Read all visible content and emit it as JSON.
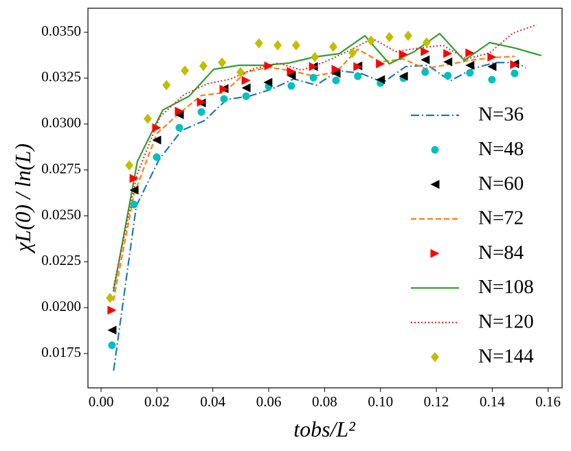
{
  "chart_data": {
    "type": "line",
    "x_label": "tobs/L²",
    "y_label": "χL(0) / ln(L)",
    "xlim": [
      -0.0047,
      0.165
    ],
    "ylim": [
      0.01563,
      0.03631
    ],
    "xticks": [
      {
        "value": 0.0,
        "label": "0.00"
      },
      {
        "value": 0.02,
        "label": "0.02"
      },
      {
        "value": 0.04,
        "label": "0.04"
      },
      {
        "value": 0.06,
        "label": "0.06"
      },
      {
        "value": 0.08,
        "label": "0.08"
      },
      {
        "value": 0.1,
        "label": "0.10"
      },
      {
        "value": 0.12,
        "label": "0.12"
      },
      {
        "value": 0.14,
        "label": "0.14"
      },
      {
        "value": 0.16,
        "label": "0.16"
      }
    ],
    "yticks": [
      {
        "value": 0.0175,
        "label": "0.0175"
      },
      {
        "value": 0.02,
        "label": "0.0200"
      },
      {
        "value": 0.0225,
        "label": "0.0225"
      },
      {
        "value": 0.025,
        "label": "0.0250"
      },
      {
        "value": 0.0275,
        "label": "0.0275"
      },
      {
        "value": 0.03,
        "label": "0.0300"
      },
      {
        "value": 0.0325,
        "label": "0.0325"
      },
      {
        "value": 0.035,
        "label": "0.0350"
      }
    ],
    "legend": "right",
    "series": [
      {
        "name": "N=36",
        "color": "#1f77b4",
        "line": "dashdot",
        "marker": null,
        "x": [
          0.0045,
          0.0126,
          0.0207,
          0.0288,
          0.0369,
          0.045,
          0.053,
          0.061,
          0.069,
          0.077,
          0.085,
          0.093,
          0.101,
          0.109,
          0.117,
          0.125,
          0.133,
          0.141,
          0.149,
          0.152
        ],
        "values": [
          0.01657,
          0.02554,
          0.02805,
          0.02965,
          0.03018,
          0.03134,
          0.03152,
          0.0319,
          0.03246,
          0.03212,
          0.03291,
          0.03276,
          0.03227,
          0.03313,
          0.0332,
          0.03235,
          0.03302,
          0.03335,
          0.03335,
          0.03306
        ]
      },
      {
        "name": "N=48",
        "color": "#00bfbf",
        "line": null,
        "marker": "circle",
        "x": [
          0.0039,
          0.0118,
          0.0199,
          0.028,
          0.0359,
          0.044,
          0.0519,
          0.06,
          0.0681,
          0.076,
          0.0841,
          0.0919,
          0.1,
          0.1082,
          0.116,
          0.1241,
          0.132,
          0.1399,
          0.148
        ],
        "values": [
          0.01795,
          0.02562,
          0.0282,
          0.0298,
          0.03066,
          0.03137,
          0.03152,
          0.03205,
          0.03208,
          0.03253,
          0.03238,
          0.03261,
          0.03223,
          0.0325,
          0.03283,
          0.03264,
          0.03279,
          0.03242,
          0.03276
        ]
      },
      {
        "name": "N=60",
        "color": "#000000",
        "line": null,
        "marker": "triangle-left",
        "x": [
          0.0039,
          0.0118,
          0.0199,
          0.028,
          0.0359,
          0.044,
          0.0519,
          0.0597,
          0.0681,
          0.076,
          0.0841,
          0.0919,
          0.1,
          0.1082,
          0.116,
          0.1241,
          0.132,
          0.1399,
          0.148
        ],
        "values": [
          0.01877,
          0.0264,
          0.02913,
          0.03051,
          0.03115,
          0.03193,
          0.03197,
          0.03227,
          0.03264,
          0.03313,
          0.03276,
          0.03317,
          0.03242,
          0.03261,
          0.0335,
          0.03339,
          0.0332,
          0.03313,
          0.03328
        ]
      },
      {
        "name": "N=72",
        "color": "#ff7f0e",
        "line": "dashed",
        "marker": null,
        "x": [
          0.0044,
          0.0118,
          0.0199,
          0.028,
          0.0359,
          0.044,
          0.0519,
          0.06,
          0.0681,
          0.076,
          0.0841,
          0.0919,
          0.1,
          0.1082,
          0.116,
          0.1241,
          0.132,
          0.1399,
          0.148
        ],
        "values": [
          0.02038,
          0.02618,
          0.02947,
          0.03059,
          0.03156,
          0.03171,
          0.03283,
          0.03309,
          0.03291,
          0.03261,
          0.03283,
          0.03407,
          0.03339,
          0.03354,
          0.03302,
          0.03324,
          0.03347,
          0.03362,
          0.03369
        ]
      },
      {
        "name": "N=84",
        "color": "#ff0000",
        "line": null,
        "marker": "triangle-right",
        "x": [
          0.0039,
          0.0118,
          0.0199,
          0.028,
          0.0359,
          0.044,
          0.0519,
          0.06,
          0.0681,
          0.076,
          0.0841,
          0.0919,
          0.1,
          0.1082,
          0.116,
          0.1241,
          0.132,
          0.1399,
          0.148
        ],
        "values": [
          0.01986,
          0.02704,
          0.0298,
          0.0307,
          0.03119,
          0.0319,
          0.03238,
          0.03317,
          0.03287,
          0.03313,
          0.03298,
          0.03313,
          0.03328,
          0.0338,
          0.03395,
          0.03384,
          0.03388,
          0.03365,
          0.03324
        ]
      },
      {
        "name": "N=108",
        "color": "#2ca02c",
        "line": "solid",
        "marker": null,
        "x": [
          0.0044,
          0.013,
          0.0221,
          0.0315,
          0.0403,
          0.0492,
          0.0583,
          0.0671,
          0.0762,
          0.0853,
          0.0944,
          0.1032,
          0.1121,
          0.1212,
          0.13,
          0.1391,
          0.1482,
          0.1576
        ],
        "values": [
          0.02087,
          0.02797,
          0.03077,
          0.03152,
          0.03298,
          0.0332,
          0.0332,
          0.03332,
          0.03365,
          0.03384,
          0.03481,
          0.03328,
          0.03395,
          0.03493,
          0.03347,
          0.03444,
          0.03414,
          0.03373
        ]
      },
      {
        "name": "N=120",
        "color": "#d62728",
        "line": "dotted",
        "marker": null,
        "x": [
          0.0044,
          0.0128,
          0.0211,
          0.0297,
          0.0381,
          0.0465,
          0.0548,
          0.0634,
          0.0718,
          0.0801,
          0.0887,
          0.0971,
          0.1055,
          0.1138,
          0.1224,
          0.1308,
          0.1391,
          0.1475,
          0.1559
        ],
        "values": [
          0.02105,
          0.02722,
          0.0304,
          0.0316,
          0.0322,
          0.03246,
          0.03302,
          0.03332,
          0.03294,
          0.03339,
          0.03399,
          0.03466,
          0.03395,
          0.03414,
          0.03429,
          0.03354,
          0.03388,
          0.03496,
          0.03541
        ]
      },
      {
        "name": "N=144",
        "color": "#bfbf00",
        "line": null,
        "marker": "diamond",
        "x": [
          0.0032,
          0.0101,
          0.0167,
          0.0234,
          0.03,
          0.0366,
          0.0433,
          0.0499,
          0.0565,
          0.0632,
          0.0698,
          0.0765,
          0.0831,
          0.09,
          0.0966,
          0.1032,
          0.1099,
          0.1165
        ],
        "values": [
          0.02053,
          0.02775,
          0.03029,
          0.03212,
          0.03291,
          0.03317,
          0.03335,
          0.03283,
          0.0344,
          0.03429,
          0.03429,
          0.03365,
          0.03421,
          0.03388,
          0.03455,
          0.03474,
          0.03481,
          0.03444
        ]
      }
    ]
  }
}
